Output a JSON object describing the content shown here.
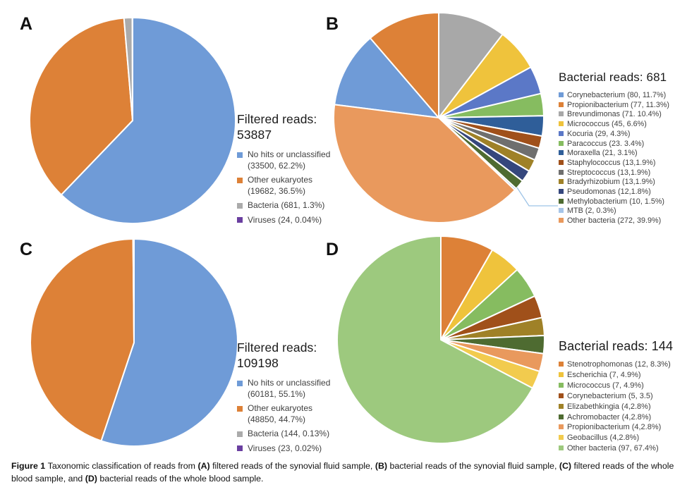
{
  "figure": {
    "caption_segments": [
      {
        "text": "Figure 1 ",
        "bold": true
      },
      {
        "text": "Taxonomic classification of reads from ",
        "bold": false
      },
      {
        "text": "(A)",
        "bold": true
      },
      {
        "text": " filtered reads of the synovial fluid sample, ",
        "bold": false
      },
      {
        "text": "(B)",
        "bold": true
      },
      {
        "text": " bacterial reads of the synovial fluid sample, ",
        "bold": false
      },
      {
        "text": "(C)",
        "bold": true
      },
      {
        "text": " filtered reads of the whole blood sample, and ",
        "bold": false
      },
      {
        "text": "(D)",
        "bold": true
      },
      {
        "text": " bacterial reads of the whole blood sample.",
        "bold": false
      }
    ]
  },
  "chart_data": [
    {
      "panel": "A",
      "type": "pie",
      "title": "Filtered reads: 53887",
      "total_reads": 53887,
      "start_angle": 0,
      "legend_position": "right",
      "slices": [
        {
          "name": "No hits or unclassified",
          "label": "No hits or unclassified (33500, 62.2%)",
          "count": 33500,
          "pct": 62.2,
          "color": "#6F9BD7"
        },
        {
          "name": "Other eukaryotes",
          "label": "Other eukaryotes (19682, 36.5%)",
          "count": 19682,
          "pct": 36.5,
          "color": "#DD8137"
        },
        {
          "name": "Bacteria",
          "label": "Bacteria (681, 1.3%)",
          "count": 681,
          "pct": 1.3,
          "color": "#ABABAB"
        },
        {
          "name": "Viruses",
          "label": "Viruses (24, 0.04%)",
          "count": 24,
          "pct": 0.04,
          "color": "#6A3FA0"
        }
      ]
    },
    {
      "panel": "B",
      "type": "pie",
      "title": "Bacterial reads: 681",
      "total_reads": 681,
      "start_angle": 277.2,
      "legend_position": "right",
      "callout_slice": "MTB",
      "slices": [
        {
          "name": "Corynebacterium",
          "label": "Corynebacterium (80, 11.7%)",
          "count": 80,
          "pct": 11.7,
          "color": "#6F9BD7"
        },
        {
          "name": "Propionibacterium",
          "label": "Propionibacterium (77, 11.3%)",
          "count": 77,
          "pct": 11.3,
          "color": "#DD8137"
        },
        {
          "name": "Brevundimonas",
          "label": "Brevundimonas (71. 10.4%)",
          "count": 71,
          "pct": 10.4,
          "color": "#A8A8A8"
        },
        {
          "name": "Micrococcus",
          "label": "Micrococcus (45, 6.6%)",
          "count": 45,
          "pct": 6.6,
          "color": "#EFC33C"
        },
        {
          "name": "Kocuria",
          "label": "Kocuria (29, 4.3%)",
          "count": 29,
          "pct": 4.3,
          "color": "#5B78C7"
        },
        {
          "name": "Paracoccus",
          "label": "Paracoccus (23. 3.4%)",
          "count": 23,
          "pct": 3.4,
          "color": "#86BC60"
        },
        {
          "name": "Moraxella",
          "label": "Moraxella (21, 3.1%)",
          "count": 21,
          "pct": 3.1,
          "color": "#2F5E99"
        },
        {
          "name": "Staphylococcus",
          "label": "Staphylococcus (13,1.9%)",
          "count": 13,
          "pct": 1.9,
          "color": "#A0501A"
        },
        {
          "name": "Streptococcus",
          "label": "Streptococcus (13,1.9%)",
          "count": 13,
          "pct": 1.9,
          "color": "#6F6F6E"
        },
        {
          "name": "Bradyrhizobium",
          "label": "Bradyrhizobium (13,1.9%)",
          "count": 13,
          "pct": 1.9,
          "color": "#9F8127"
        },
        {
          "name": "Pseudomonas",
          "label": "Pseudomonas (12,1.8%)",
          "count": 12,
          "pct": 1.8,
          "color": "#35477D"
        },
        {
          "name": "Methylobacterium",
          "label": "Methylobacterium (10, 1.5%)",
          "count": 10,
          "pct": 1.5,
          "color": "#4E6B31"
        },
        {
          "name": "MTB",
          "label": "MTB (2, 0.3%)",
          "count": 2,
          "pct": 0.3,
          "color": "#A6C5E8"
        },
        {
          "name": "Other bacteria",
          "label": "Other bacteria (272, 39.9%)",
          "count": 272,
          "pct": 39.9,
          "color": "#E9995D"
        }
      ]
    },
    {
      "panel": "C",
      "type": "pie",
      "title": "Filtered reads: 109198",
      "total_reads": 109198,
      "start_angle": 0,
      "legend_position": "right",
      "slices": [
        {
          "name": "No hits or unclassified",
          "label": "No hits or unclassified (60181, 55.1%)",
          "count": 60181,
          "pct": 55.1,
          "color": "#6F9BD7"
        },
        {
          "name": "Other eukaryotes",
          "label": "Other eukaryotes (48850, 44.7%)",
          "count": 48850,
          "pct": 44.7,
          "color": "#DD8137"
        },
        {
          "name": "Bacteria",
          "label": "Bacteria (144, 0.13%)",
          "count": 144,
          "pct": 0.13,
          "color": "#ABABAB"
        },
        {
          "name": "Viruses",
          "label": "Viruses (23, 0.02%)",
          "count": 23,
          "pct": 0.02,
          "color": "#6A3FA0"
        }
      ]
    },
    {
      "panel": "D",
      "type": "pie",
      "title": "Bacterial reads: 144",
      "total_reads": 144,
      "start_angle": 0,
      "legend_position": "right",
      "slices": [
        {
          "name": "Stenotrophomonas",
          "label": "Stenotrophomonas (12, 8.3%)",
          "count": 12,
          "pct": 8.3,
          "color": "#DD8137"
        },
        {
          "name": "Escherichia",
          "label": "Escherichia (7, 4.9%)",
          "count": 7,
          "pct": 4.9,
          "color": "#EFC33C"
        },
        {
          "name": "Micrococcus",
          "label": "Micrococcus (7, 4.9%)",
          "count": 7,
          "pct": 4.9,
          "color": "#86BC60"
        },
        {
          "name": "Corynebacterium",
          "label": "Corynebacterium (5, 3.5)",
          "count": 5,
          "pct": 3.5,
          "color": "#A0501A"
        },
        {
          "name": "Elizabethkingia",
          "label": "Elizabethkingia (4,2.8%)",
          "count": 4,
          "pct": 2.8,
          "color": "#9F8127"
        },
        {
          "name": "Achromobacter",
          "label": "Achromobacter (4,2.8%)",
          "count": 4,
          "pct": 2.8,
          "color": "#4E6B31"
        },
        {
          "name": "Propionibacterium",
          "label": "Propionibacterium (4,2.8%)",
          "count": 4,
          "pct": 2.8,
          "color": "#E9995D"
        },
        {
          "name": "Geobacillus",
          "label": "Geobacillus (4,2.8%)",
          "count": 4,
          "pct": 2.8,
          "color": "#F2CB4E"
        },
        {
          "name": "Other bacteria",
          "label": "Other bacteria (97, 67.4%)",
          "count": 97,
          "pct": 67.4,
          "color": "#9DC97E"
        }
      ]
    }
  ]
}
